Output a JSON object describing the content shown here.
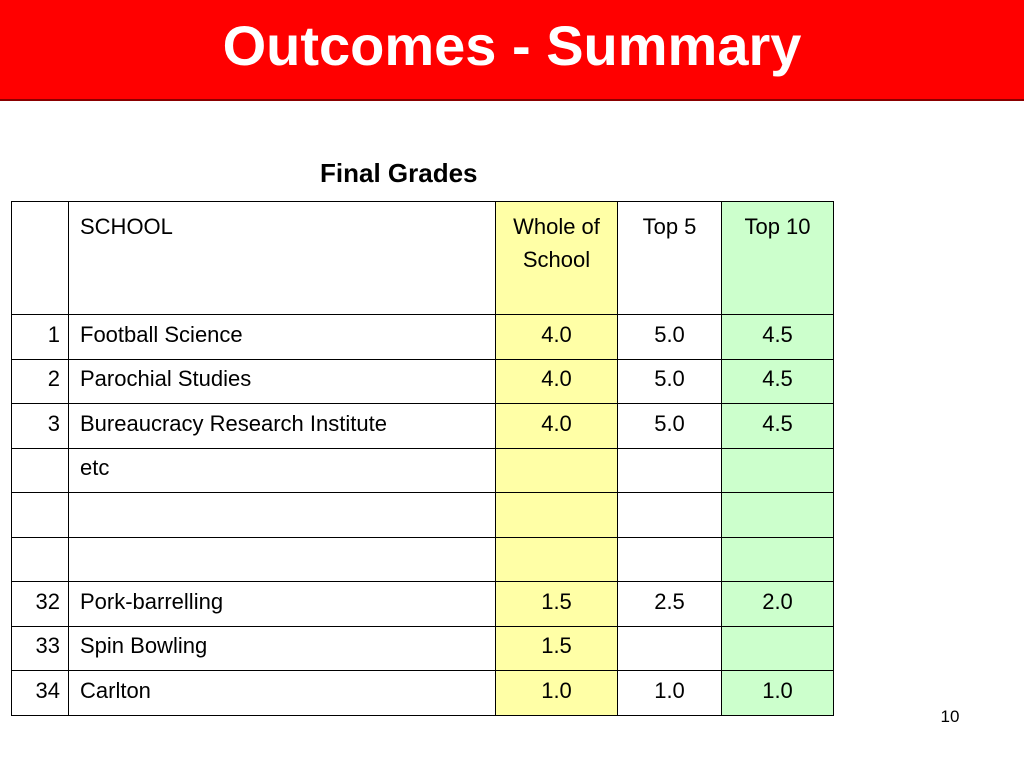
{
  "slide": {
    "title": "Outcomes - Summary",
    "page_number": "10",
    "colors": {
      "title_bar": "#ff0000",
      "title_text": "#ffffff",
      "whole_of_school_column": "#ffffa6",
      "top_10_column": "#ccffcc"
    }
  },
  "table": {
    "caption": "Final Grades",
    "headers": {
      "rank": "",
      "school": "SCHOOL",
      "whole": "Whole of School",
      "top5": "Top 5",
      "top10": "Top 10"
    },
    "rows": [
      {
        "rank": "1",
        "school": "Football Science",
        "whole": "4.0",
        "top5": "5.0",
        "top10": "4.5"
      },
      {
        "rank": "2",
        "school": "Parochial Studies",
        "whole": "4.0",
        "top5": "5.0",
        "top10": "4.5"
      },
      {
        "rank": "3",
        "school": "Bureaucracy Research Institute",
        "whole": "4.0",
        "top5": "5.0",
        "top10": "4.5"
      },
      {
        "rank": "",
        "school": "etc",
        "whole": "",
        "top5": "",
        "top10": ""
      },
      {
        "rank": "",
        "school": "",
        "whole": "",
        "top5": "",
        "top10": ""
      },
      {
        "rank": "",
        "school": "",
        "whole": "",
        "top5": "",
        "top10": ""
      },
      {
        "rank": "32",
        "school": "Pork-barrelling",
        "whole": "1.5",
        "top5": "2.5",
        "top10": "2.0"
      },
      {
        "rank": "33",
        "school": "Spin Bowling",
        "whole": "1.5",
        "top5": "",
        "top10": ""
      },
      {
        "rank": "34",
        "school": "Carlton",
        "whole": "1.0",
        "top5": "1.0",
        "top10": "1.0"
      }
    ]
  }
}
